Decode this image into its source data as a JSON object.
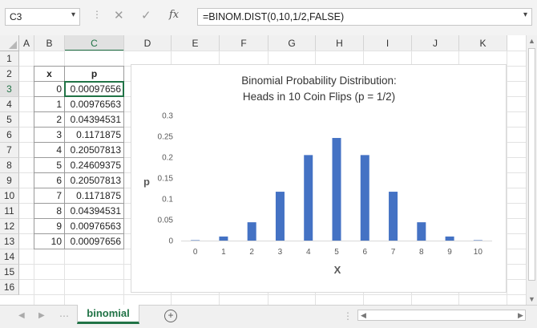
{
  "name_box": {
    "value": "C3"
  },
  "formula_bar": {
    "formula": "=BINOM.DIST(0,10,1/2,FALSE)",
    "fx_label": "fx"
  },
  "columns": [
    "A",
    "B",
    "C",
    "D",
    "E",
    "F",
    "G",
    "H",
    "I",
    "J",
    "K"
  ],
  "rows": [
    "1",
    "2",
    "3",
    "4",
    "5",
    "6",
    "7",
    "8",
    "9",
    "10",
    "11",
    "12",
    "13",
    "14",
    "15",
    "16"
  ],
  "selected": {
    "column": "C",
    "row": "3"
  },
  "table": {
    "header_x": "x",
    "header_p": "p",
    "rows": [
      {
        "x": "0",
        "p": "0.00097656"
      },
      {
        "x": "1",
        "p": "0.00976563"
      },
      {
        "x": "2",
        "p": "0.04394531"
      },
      {
        "x": "3",
        "p": "0.1171875"
      },
      {
        "x": "4",
        "p": "0.20507813"
      },
      {
        "x": "5",
        "p": "0.24609375"
      },
      {
        "x": "6",
        "p": "0.20507813"
      },
      {
        "x": "7",
        "p": "0.1171875"
      },
      {
        "x": "8",
        "p": "0.04394531"
      },
      {
        "x": "9",
        "p": "0.00976563"
      },
      {
        "x": "10",
        "p": "0.00097656"
      }
    ]
  },
  "chart_data": {
    "type": "bar",
    "title": "Binomial Probability Distribution:",
    "subtitle": "Heads in 10 Coin Flips (p = 1/2)",
    "xlabel": "X",
    "ylabel": "p",
    "categories": [
      "0",
      "1",
      "2",
      "3",
      "4",
      "5",
      "6",
      "7",
      "8",
      "9",
      "10"
    ],
    "values": [
      0.00097656,
      0.00976563,
      0.04394531,
      0.1171875,
      0.20507813,
      0.24609375,
      0.20507813,
      0.1171875,
      0.04394531,
      0.00976563,
      0.00097656
    ],
    "ylim": [
      0,
      0.3
    ],
    "yticks": [
      "0",
      "0.05",
      "0.1",
      "0.15",
      "0.2",
      "0.25",
      "0.3"
    ],
    "grid": false,
    "bar_color": "#4472c4"
  },
  "sheet_tabs": [
    {
      "label": "binomial",
      "active": true
    }
  ]
}
